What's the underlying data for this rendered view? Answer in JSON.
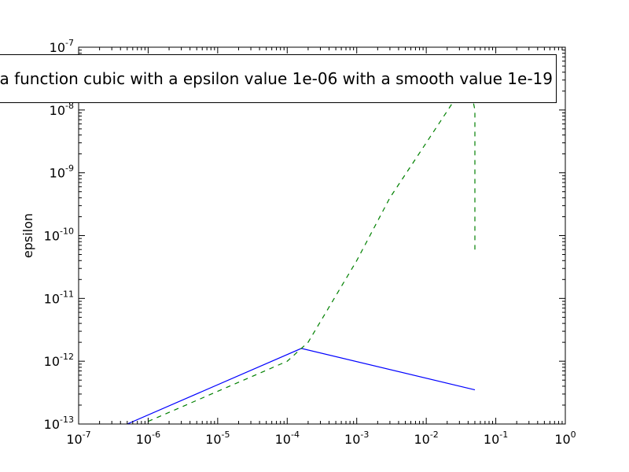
{
  "chart_data": {
    "type": "line",
    "title": "a function cubic with a epsilon value 1e-06 with a smooth value 1e-19",
    "xlabel": "",
    "ylabel": "epsilon",
    "xscale": "log",
    "yscale": "log",
    "xlim": [
      1e-07,
      1
    ],
    "ylim": [
      1e-13,
      1e-07
    ],
    "x_ticks": [
      "10-7",
      "10-6",
      "10-5",
      "10-4",
      "10-3",
      "10-2",
      "10-1",
      "100"
    ],
    "y_ticks": [
      "10-13",
      "10-12",
      "10-11",
      "10-10",
      "10-9",
      "10-8",
      "10-7"
    ],
    "grid": false,
    "series": [
      {
        "color": "#0000ff",
        "style": "solid",
        "x": [
          5e-07,
          0.00016,
          0.05
        ],
        "y": [
          1e-13,
          1.6e-12,
          3.5e-13
        ]
      },
      {
        "color": "#008000",
        "style": "dashed",
        "x": [
          1e-06,
          0.0001,
          0.0002,
          0.001,
          0.003,
          0.01,
          0.025,
          0.045,
          0.05,
          0.05
        ],
        "y": [
          1.1e-13,
          1e-12,
          2e-12,
          4e-11,
          4e-10,
          3e-09,
          1.4e-08,
          1.8e-08,
          1e-08,
          6e-11
        ]
      }
    ]
  }
}
